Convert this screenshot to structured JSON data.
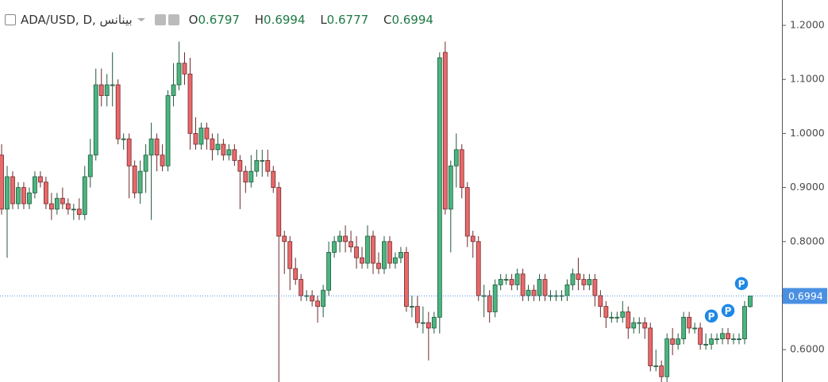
{
  "chart_data": {
    "type": "candlestick",
    "title": "ADA/USD, D, بينانس",
    "ohlc_labels": [
      "O",
      "H",
      "L",
      "C"
    ],
    "up_color": "#4bb57f",
    "up_border": "#1f5a3c",
    "down_color": "#e9696b",
    "down_border": "#6e2a2b",
    "price_line_color": "#4a90e2",
    "marker_color": "#1e88e5",
    "markers": [
      "P",
      "P",
      "P"
    ],
    "ylim": [
      0.5402,
      1.2469
    ],
    "yticks": [
      {
        "value": 0.6,
        "label": "0.6000"
      },
      {
        "value": 0.7,
        "label": "0.7000"
      },
      {
        "value": 0.8,
        "label": "0.8000"
      },
      {
        "value": 0.9,
        "label": "0.9000"
      },
      {
        "value": 1.0,
        "label": "1.0000"
      },
      {
        "value": 1.1,
        "label": "1.1000"
      },
      {
        "value": 1.2,
        "label": "1.2000"
      }
    ],
    "open": [
      0.96,
      0.86,
      0.92,
      0.87,
      0.9,
      0.87,
      0.89,
      0.92,
      0.91,
      0.87,
      0.86,
      0.88,
      0.87,
      0.86,
      0.86,
      0.85,
      0.92,
      0.96,
      1.09,
      1.07,
      1.09,
      1.09,
      0.99,
      0.99,
      0.94,
      0.89,
      0.93,
      0.96,
      0.99,
      0.96,
      0.94,
      1.07,
      1.09,
      1.13,
      1.11,
      1.0,
      0.98,
      1.01,
      0.99,
      0.97,
      0.98,
      0.96,
      0.97,
      0.95,
      0.93,
      0.91,
      0.93,
      0.95,
      0.95,
      0.93,
      0.9,
      0.81,
      0.8,
      0.75,
      0.73,
      0.7,
      0.7,
      0.69,
      0.68,
      0.71,
      0.78,
      0.8,
      0.81,
      0.8,
      0.79,
      0.77,
      0.76,
      0.81,
      0.76,
      0.75,
      0.8,
      0.76,
      0.77,
      0.78,
      0.68,
      0.68,
      0.65,
      0.65,
      0.64,
      0.66,
      1.15,
      0.86,
      0.94,
      0.97,
      0.9,
      0.81,
      0.8,
      0.7,
      0.7,
      0.67,
      0.72,
      0.73,
      0.73,
      0.72,
      0.74,
      0.7,
      0.71,
      0.7,
      0.73,
      0.7,
      0.7,
      0.7,
      0.7,
      0.72,
      0.74,
      0.73,
      0.72,
      0.73,
      0.7,
      0.68,
      0.66,
      0.66,
      0.66,
      0.67,
      0.64,
      0.65,
      0.65,
      0.64,
      0.57,
      0.57,
      0.55,
      0.62,
      0.61,
      0.62,
      0.66,
      0.64,
      0.64,
      0.61,
      0.61,
      0.62,
      0.62,
      0.63,
      0.62,
      0.62,
      0.62,
      0.6797
    ],
    "high": [
      0.98,
      0.94,
      0.93,
      0.91,
      0.91,
      0.9,
      0.93,
      0.93,
      0.92,
      0.89,
      0.89,
      0.9,
      0.88,
      0.87,
      0.88,
      0.94,
      0.99,
      1.12,
      1.12,
      1.11,
      1.15,
      1.1,
      1.0,
      1.0,
      0.95,
      0.95,
      0.98,
      1.02,
      1.0,
      0.98,
      1.08,
      1.13,
      1.17,
      1.15,
      1.14,
      1.03,
      1.02,
      1.02,
      1.0,
      1.0,
      0.99,
      0.98,
      0.98,
      0.96,
      0.94,
      0.96,
      0.97,
      0.97,
      0.97,
      0.94,
      0.91,
      0.82,
      0.81,
      0.77,
      0.74,
      0.71,
      0.71,
      0.7,
      0.72,
      0.8,
      0.81,
      0.82,
      0.83,
      0.82,
      0.81,
      0.79,
      0.83,
      0.82,
      0.78,
      0.81,
      0.81,
      0.78,
      0.79,
      0.79,
      0.7,
      0.7,
      0.68,
      0.67,
      0.67,
      1.15,
      1.17,
      0.95,
      1.0,
      0.98,
      0.91,
      0.82,
      0.81,
      0.72,
      0.71,
      0.73,
      0.74,
      0.74,
      0.74,
      0.75,
      0.75,
      0.72,
      0.72,
      0.74,
      0.74,
      0.71,
      0.71,
      0.71,
      0.73,
      0.75,
      0.77,
      0.74,
      0.74,
      0.74,
      0.71,
      0.69,
      0.67,
      0.67,
      0.69,
      0.68,
      0.66,
      0.66,
      0.66,
      0.65,
      0.6,
      0.58,
      0.63,
      0.64,
      0.63,
      0.67,
      0.67,
      0.65,
      0.65,
      0.63,
      0.63,
      0.63,
      0.64,
      0.64,
      0.63,
      0.63,
      0.69,
      0.6994
    ],
    "low": [
      0.85,
      0.77,
      0.86,
      0.86,
      0.86,
      0.86,
      0.88,
      0.9,
      0.86,
      0.84,
      0.85,
      0.86,
      0.85,
      0.84,
      0.84,
      0.84,
      0.9,
      0.95,
      1.05,
      1.05,
      1.05,
      0.98,
      0.97,
      0.88,
      0.88,
      0.87,
      0.89,
      0.84,
      0.93,
      0.93,
      0.93,
      1.05,
      1.08,
      1.09,
      0.97,
      0.97,
      0.97,
      0.97,
      0.95,
      0.96,
      0.95,
      0.95,
      0.94,
      0.86,
      0.89,
      0.9,
      0.92,
      0.92,
      0.92,
      0.89,
      0.54,
      0.74,
      0.71,
      0.72,
      0.69,
      0.69,
      0.68,
      0.65,
      0.66,
      0.7,
      0.77,
      0.78,
      0.78,
      0.78,
      0.75,
      0.75,
      0.75,
      0.74,
      0.74,
      0.74,
      0.75,
      0.75,
      0.76,
      0.67,
      0.66,
      0.64,
      0.63,
      0.58,
      0.63,
      0.63,
      0.85,
      0.78,
      0.9,
      0.88,
      0.79,
      0.77,
      0.69,
      0.66,
      0.65,
      0.66,
      0.71,
      0.72,
      0.71,
      0.71,
      0.69,
      0.69,
      0.69,
      0.69,
      0.69,
      0.69,
      0.69,
      0.69,
      0.69,
      0.71,
      0.71,
      0.71,
      0.71,
      0.68,
      0.66,
      0.64,
      0.65,
      0.65,
      0.65,
      0.62,
      0.63,
      0.63,
      0.62,
      0.56,
      0.56,
      0.54,
      0.54,
      0.59,
      0.6,
      0.61,
      0.63,
      0.63,
      0.6,
      0.6,
      0.6,
      0.61,
      0.61,
      0.61,
      0.61,
      0.61,
      0.61,
      0.6777
    ],
    "close": [
      0.86,
      0.92,
      0.87,
      0.9,
      0.87,
      0.89,
      0.92,
      0.91,
      0.87,
      0.86,
      0.88,
      0.87,
      0.86,
      0.86,
      0.85,
      0.92,
      0.96,
      1.09,
      1.07,
      1.09,
      1.09,
      0.99,
      0.99,
      0.94,
      0.89,
      0.93,
      0.96,
      0.99,
      0.96,
      0.94,
      1.07,
      1.09,
      1.13,
      1.11,
      1.0,
      0.98,
      1.01,
      0.99,
      0.97,
      0.98,
      0.96,
      0.97,
      0.95,
      0.93,
      0.91,
      0.93,
      0.95,
      0.95,
      0.93,
      0.9,
      0.81,
      0.8,
      0.75,
      0.73,
      0.7,
      0.7,
      0.69,
      0.68,
      0.71,
      0.78,
      0.8,
      0.81,
      0.8,
      0.79,
      0.77,
      0.76,
      0.81,
      0.76,
      0.75,
      0.8,
      0.76,
      0.77,
      0.78,
      0.68,
      0.68,
      0.65,
      0.65,
      0.64,
      0.66,
      1.14,
      0.86,
      0.94,
      0.97,
      0.9,
      0.81,
      0.8,
      0.7,
      0.7,
      0.67,
      0.72,
      0.73,
      0.73,
      0.72,
      0.74,
      0.7,
      0.71,
      0.7,
      0.73,
      0.7,
      0.7,
      0.7,
      0.7,
      0.72,
      0.74,
      0.73,
      0.72,
      0.73,
      0.7,
      0.68,
      0.66,
      0.66,
      0.66,
      0.67,
      0.64,
      0.65,
      0.65,
      0.64,
      0.57,
      0.57,
      0.55,
      0.62,
      0.61,
      0.62,
      0.66,
      0.64,
      0.64,
      0.61,
      0.61,
      0.62,
      0.62,
      0.63,
      0.62,
      0.62,
      0.62,
      0.68,
      0.6994
    ]
  }
}
